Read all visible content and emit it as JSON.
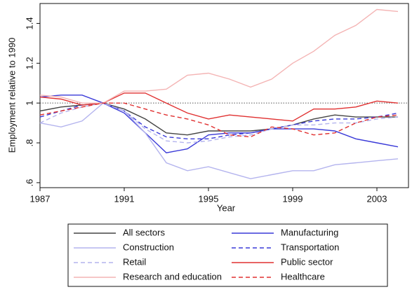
{
  "chart_data": {
    "type": "line",
    "x_label": "Year",
    "y_label": "Employment relative to 1990",
    "x": [
      1987,
      1988,
      1989,
      1990,
      1991,
      1992,
      1993,
      1994,
      1995,
      1996,
      1997,
      1998,
      1999,
      2000,
      2001,
      2002,
      2003,
      2004
    ],
    "xlim": [
      1987,
      2004.5
    ],
    "xticks": [
      1987,
      1991,
      1995,
      1999,
      2003
    ],
    "ylim": [
      0.575,
      1.5
    ],
    "yticks": [
      {
        "value": 0.6,
        "label": ".6"
      },
      {
        "value": 0.8,
        "label": ".8"
      },
      1,
      1.2,
      1.4
    ],
    "reference_line": 1,
    "series": [
      {
        "name": "All sectors",
        "color": "#444444",
        "style": "solid",
        "values": [
          0.96,
          0.98,
          0.99,
          1.0,
          0.97,
          0.92,
          0.85,
          0.84,
          0.86,
          0.86,
          0.86,
          0.87,
          0.89,
          0.92,
          0.94,
          0.93,
          0.93,
          0.93
        ]
      },
      {
        "name": "Manufacturing",
        "color": "#3a3ad8",
        "style": "solid",
        "values": [
          1.03,
          1.04,
          1.04,
          1.0,
          0.95,
          0.85,
          0.75,
          0.77,
          0.84,
          0.85,
          0.85,
          0.87,
          0.87,
          0.87,
          0.86,
          0.82,
          0.8,
          0.78
        ]
      },
      {
        "name": "Construction",
        "color": "#b4b4ee",
        "style": "solid",
        "values": [
          0.9,
          0.88,
          0.91,
          1.0,
          0.96,
          0.85,
          0.7,
          0.66,
          0.68,
          0.65,
          0.62,
          0.64,
          0.66,
          0.66,
          0.69,
          0.7,
          0.71,
          0.72
        ]
      },
      {
        "name": "Transportation",
        "color": "#3a3ad8",
        "style": "dashed",
        "values": [
          0.93,
          0.96,
          0.99,
          1.0,
          0.96,
          0.88,
          0.83,
          0.82,
          0.82,
          0.84,
          0.85,
          0.87,
          0.89,
          0.91,
          0.92,
          0.92,
          0.93,
          0.95
        ]
      },
      {
        "name": "Retail",
        "color": "#b4b4ee",
        "style": "dashed",
        "values": [
          0.9,
          0.95,
          0.98,
          1.0,
          0.96,
          0.87,
          0.81,
          0.8,
          0.81,
          0.83,
          0.84,
          0.87,
          0.89,
          0.89,
          0.9,
          0.9,
          0.92,
          0.93
        ]
      },
      {
        "name": "Public sector",
        "color": "#e03030",
        "style": "solid",
        "values": [
          1.03,
          1.02,
          0.99,
          1.0,
          1.05,
          1.05,
          1.0,
          0.95,
          0.92,
          0.94,
          0.93,
          0.92,
          0.91,
          0.97,
          0.97,
          0.98,
          1.01,
          1.0
        ]
      },
      {
        "name": "Research and education",
        "color": "#f4b4b4",
        "style": "solid",
        "values": [
          1.04,
          1.03,
          1.0,
          1.0,
          1.06,
          1.06,
          1.07,
          1.14,
          1.15,
          1.12,
          1.08,
          1.12,
          1.2,
          1.26,
          1.34,
          1.39,
          1.47,
          1.46
        ]
      },
      {
        "name": "Healthcare",
        "color": "#e03030",
        "style": "dashed",
        "values": [
          0.94,
          0.96,
          0.98,
          1.0,
          1.0,
          0.97,
          0.94,
          0.92,
          0.89,
          0.84,
          0.83,
          0.88,
          0.87,
          0.84,
          0.85,
          0.9,
          0.93,
          0.94
        ]
      }
    ]
  }
}
